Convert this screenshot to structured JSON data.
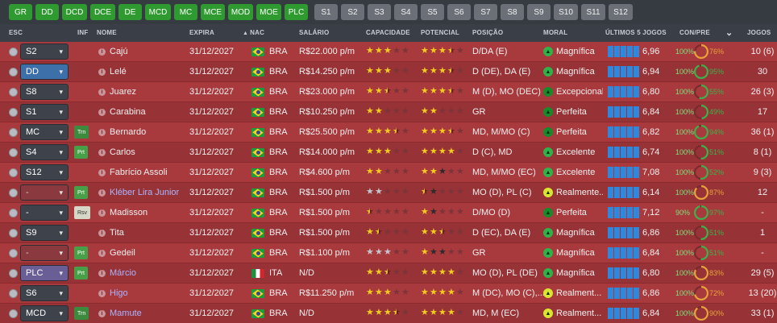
{
  "filters": {
    "positions": [
      "GR",
      "DD",
      "DCD",
      "DCE",
      "DE",
      "MCD",
      "MC",
      "MCE",
      "MOD",
      "MOE",
      "PLC"
    ],
    "subs": [
      "S1",
      "S2",
      "S3",
      "S4",
      "S5",
      "S6",
      "S7",
      "S8",
      "S9",
      "S10",
      "S11",
      "S12"
    ]
  },
  "columns": {
    "esc": "ESC",
    "inf": "INF",
    "nome": "NOME",
    "expira": "EXPIRA",
    "nac": "NAC",
    "salario": "SALÁRIO",
    "capacidade": "CAPACIDADE",
    "potencial": "POTENCIAL",
    "posicao": "POSIÇÃO",
    "moral": "MORAL",
    "ultimos": "ÚLTIMOS 5 JOGOS",
    "conpre": "CON/PRE",
    "jogos": "JOGOS"
  },
  "players": [
    {
      "sel": "S2",
      "sel_style": "dark",
      "inf": "",
      "name": "Cajú",
      "link": false,
      "expira": "31/12/2027",
      "flag": "bra",
      "nac": "BRA",
      "salario": "R$22.000 p/m",
      "cap": [
        "f",
        "f",
        "f",
        "e",
        "e"
      ],
      "pot": [
        "f",
        "f",
        "f",
        "h",
        "e"
      ],
      "posicao": "D/DA (E)",
      "moral_icon": "g",
      "moral": "Magnífica",
      "rating": "6,96",
      "cond": "100%",
      "pre": "76%",
      "pre_val": 76,
      "ring_color": "#e8a33a",
      "jogos": "10 (6)"
    },
    {
      "sel": "DD",
      "sel_style": "blue",
      "inf": "",
      "name": "Lelé",
      "link": false,
      "expira": "31/12/2027",
      "flag": "bra",
      "nac": "BRA",
      "salario": "R$14.250 p/m",
      "cap": [
        "f",
        "f",
        "f",
        "e",
        "e"
      ],
      "pot": [
        "f",
        "f",
        "f",
        "h",
        "e"
      ],
      "posicao": "D (DE), DA (E)",
      "moral_icon": "g",
      "moral": "Magnífica",
      "rating": "6,94",
      "cond": "100%",
      "pre": "95%",
      "pre_val": 95,
      "ring_color": "#3bb34a",
      "jogos": "30"
    },
    {
      "sel": "S8",
      "sel_style": "dark",
      "inf": "",
      "name": "Juarez",
      "link": false,
      "expira": "31/12/2027",
      "flag": "bra",
      "nac": "BRA",
      "salario": "R$23.000 p/m",
      "cap": [
        "f",
        "f",
        "h",
        "e",
        "e"
      ],
      "pot": [
        "f",
        "f",
        "f",
        "h",
        "e"
      ],
      "posicao": "M (D), MO (DEC)",
      "moral_icon": "dg",
      "moral": "Excepcional",
      "rating": "6,80",
      "cond": "100%",
      "pre": "55%",
      "pre_val": 55,
      "ring_color": "#3bb34a",
      "jogos": "26 (3)"
    },
    {
      "sel": "S1",
      "sel_style": "dark",
      "inf": "",
      "name": "Carabina",
      "link": false,
      "expira": "31/12/2027",
      "flag": "bra",
      "nac": "BRA",
      "salario": "R$10.250 p/m",
      "cap": [
        "f",
        "f",
        "e",
        "e",
        "e"
      ],
      "pot": [
        "f",
        "f",
        "e",
        "e",
        "e"
      ],
      "posicao": "GR",
      "moral_icon": "dg",
      "moral": "Perfeita",
      "rating": "6,84",
      "cond": "100%",
      "pre": "49%",
      "pre_val": 49,
      "ring_color": "#3bb34a",
      "jogos": "17"
    },
    {
      "sel": "MC",
      "sel_style": "dark",
      "inf": "Trn",
      "inf_style": "trn",
      "name": "Bernardo",
      "link": false,
      "expira": "31/12/2027",
      "flag": "bra",
      "nac": "BRA",
      "salario": "R$25.500 p/m",
      "cap": [
        "f",
        "f",
        "f",
        "h",
        "e"
      ],
      "pot": [
        "f",
        "f",
        "f",
        "h",
        "e"
      ],
      "posicao": "MD, M/MO (C)",
      "moral_icon": "dg",
      "moral": "Perfeita",
      "rating": "6,82",
      "cond": "100%",
      "pre": "94%",
      "pre_val": 94,
      "ring_color": "#3bb34a",
      "jogos": "36 (1)"
    },
    {
      "sel": "S4",
      "sel_style": "dark",
      "inf": "Prt",
      "inf_style": "prt",
      "name": "Carlos",
      "link": false,
      "expira": "31/12/2027",
      "flag": "bra",
      "nac": "BRA",
      "salario": "R$14.000 p/m",
      "cap": [
        "f",
        "f",
        "f",
        "e",
        "e"
      ],
      "pot": [
        "f",
        "f",
        "f",
        "f",
        "e"
      ],
      "posicao": "D (C), MD",
      "moral_icon": "g",
      "moral": "Excelente",
      "rating": "6,74",
      "cond": "100%",
      "pre": "51%",
      "pre_val": 51,
      "ring_color": "#3bb34a",
      "jogos": "8 (1)"
    },
    {
      "sel": "S12",
      "sel_style": "dark",
      "inf": "",
      "name": "Fabrício Assoli",
      "link": false,
      "expira": "31/12/2027",
      "flag": "bra",
      "nac": "BRA",
      "salario": "R$4.600 p/m",
      "cap": [
        "f",
        "f",
        "e",
        "e",
        "e"
      ],
      "pot": [
        "f",
        "f",
        "d",
        "e",
        "e"
      ],
      "posicao": "MD, M/MO (EC)",
      "moral_icon": "g",
      "moral": "Excelente",
      "rating": "7,08",
      "cond": "100%",
      "pre": "52%",
      "pre_val": 52,
      "ring_color": "#3bb34a",
      "jogos": "9 (3)"
    },
    {
      "sel": "-",
      "sel_style": "red",
      "inf": "Prt",
      "inf_style": "prt",
      "name": "Kléber Lira Junior",
      "link": true,
      "expira": "31/12/2027",
      "flag": "bra",
      "nac": "BRA",
      "salario": "R$1.500 p/m",
      "cap": [
        "s",
        "s",
        "e",
        "e",
        "e"
      ],
      "pot": [
        "h",
        "d",
        "e",
        "e",
        "e"
      ],
      "posicao": "MO (D), PL (C)",
      "moral_icon": "y",
      "moral": "Realmente...",
      "rating": "6,14",
      "cond": "100%",
      "pre": "87%",
      "pre_val": 87,
      "ring_color": "#e8a33a",
      "jogos": "12"
    },
    {
      "sel": "-",
      "sel_style": "dark",
      "inf": "Rsv",
      "inf_style": "rsv",
      "name": "Madisson",
      "link": false,
      "expira": "31/12/2027",
      "flag": "bra",
      "nac": "BRA",
      "salario": "R$1.500 p/m",
      "cap": [
        "h",
        "e",
        "e",
        "e",
        "e"
      ],
      "pot": [
        "f",
        "d",
        "e",
        "e",
        "e"
      ],
      "posicao": "D/MO (D)",
      "moral_icon": "dg",
      "moral": "Perfeita",
      "rating": "7,12",
      "cond": "90%",
      "pre": "97%",
      "pre_val": 97,
      "ring_color": "#3bb34a",
      "jogos": "-"
    },
    {
      "sel": "S9",
      "sel_style": "dark",
      "inf": "",
      "name": "Tita",
      "link": false,
      "expira": "31/12/2027",
      "flag": "bra",
      "nac": "BRA",
      "salario": "R$1.500 p/m",
      "cap": [
        "f",
        "h",
        "e",
        "e",
        "e"
      ],
      "pot": [
        "f",
        "f",
        "h",
        "e",
        "e"
      ],
      "posicao": "D (EC), DA (E)",
      "moral_icon": "g",
      "moral": "Magnífica",
      "rating": "6,86",
      "cond": "100%",
      "pre": "51%",
      "pre_val": 51,
      "ring_color": "#3bb34a",
      "jogos": "1"
    },
    {
      "sel": "-",
      "sel_style": "red",
      "inf": "Prt",
      "inf_style": "prt",
      "name": "Gedeil",
      "link": false,
      "expira": "31/12/2027",
      "flag": "bra",
      "nac": "BRA",
      "salario": "R$1.100 p/m",
      "cap": [
        "s",
        "s",
        "s",
        "e",
        "e"
      ],
      "pot": [
        "f",
        "d",
        "d",
        "e",
        "e"
      ],
      "posicao": "GR",
      "moral_icon": "g",
      "moral": "Magnífica",
      "rating": "6,84",
      "cond": "100%",
      "pre": "51%",
      "pre_val": 51,
      "ring_color": "#3bb34a",
      "jogos": "-"
    },
    {
      "sel": "PLC",
      "sel_style": "purple",
      "inf": "Prt",
      "inf_style": "prt",
      "name": "Márcio",
      "link": true,
      "expira": "31/12/2027",
      "flag": "ita",
      "nac": "ITA",
      "salario": "N/D",
      "cap": [
        "f",
        "f",
        "h",
        "e",
        "e"
      ],
      "pot": [
        "f",
        "f",
        "f",
        "f",
        "e"
      ],
      "posicao": "MO (D), PL (DE)",
      "moral_icon": "g",
      "moral": "Magnífica",
      "rating": "6,80",
      "cond": "100%",
      "pre": "83%",
      "pre_val": 83,
      "ring_color": "#e8a33a",
      "jogos": "29 (5)"
    },
    {
      "sel": "S6",
      "sel_style": "dark",
      "inf": "",
      "name": "Higo",
      "link": true,
      "expira": "31/12/2027",
      "flag": "bra",
      "nac": "BRA",
      "salario": "R$11.250 p/m",
      "cap": [
        "f",
        "f",
        "f",
        "e",
        "e"
      ],
      "pot": [
        "f",
        "f",
        "f",
        "f",
        "e"
      ],
      "posicao": "M (DC), MO (C),...",
      "moral_icon": "y",
      "moral": "Realment...",
      "rating": "6,86",
      "cond": "100%",
      "pre": "72%",
      "pre_val": 72,
      "ring_color": "#e8a33a",
      "jogos": "13 (20)"
    },
    {
      "sel": "MCD",
      "sel_style": "dark",
      "inf": "Trn",
      "inf_style": "trn",
      "name": "Mamute",
      "link": true,
      "expira": "31/12/2027",
      "flag": "bra",
      "nac": "BRA",
      "salario": "N/D",
      "cap": [
        "f",
        "f",
        "f",
        "h",
        "e"
      ],
      "pot": [
        "f",
        "f",
        "f",
        "f",
        "e"
      ],
      "posicao": "MD, M (EC)",
      "moral_icon": "y",
      "moral": "Realment...",
      "rating": "6,84",
      "cond": "100%",
      "pre": "90%",
      "pre_val": 90,
      "ring_color": "#e8a33a",
      "jogos": "33 (1)"
    }
  ]
}
